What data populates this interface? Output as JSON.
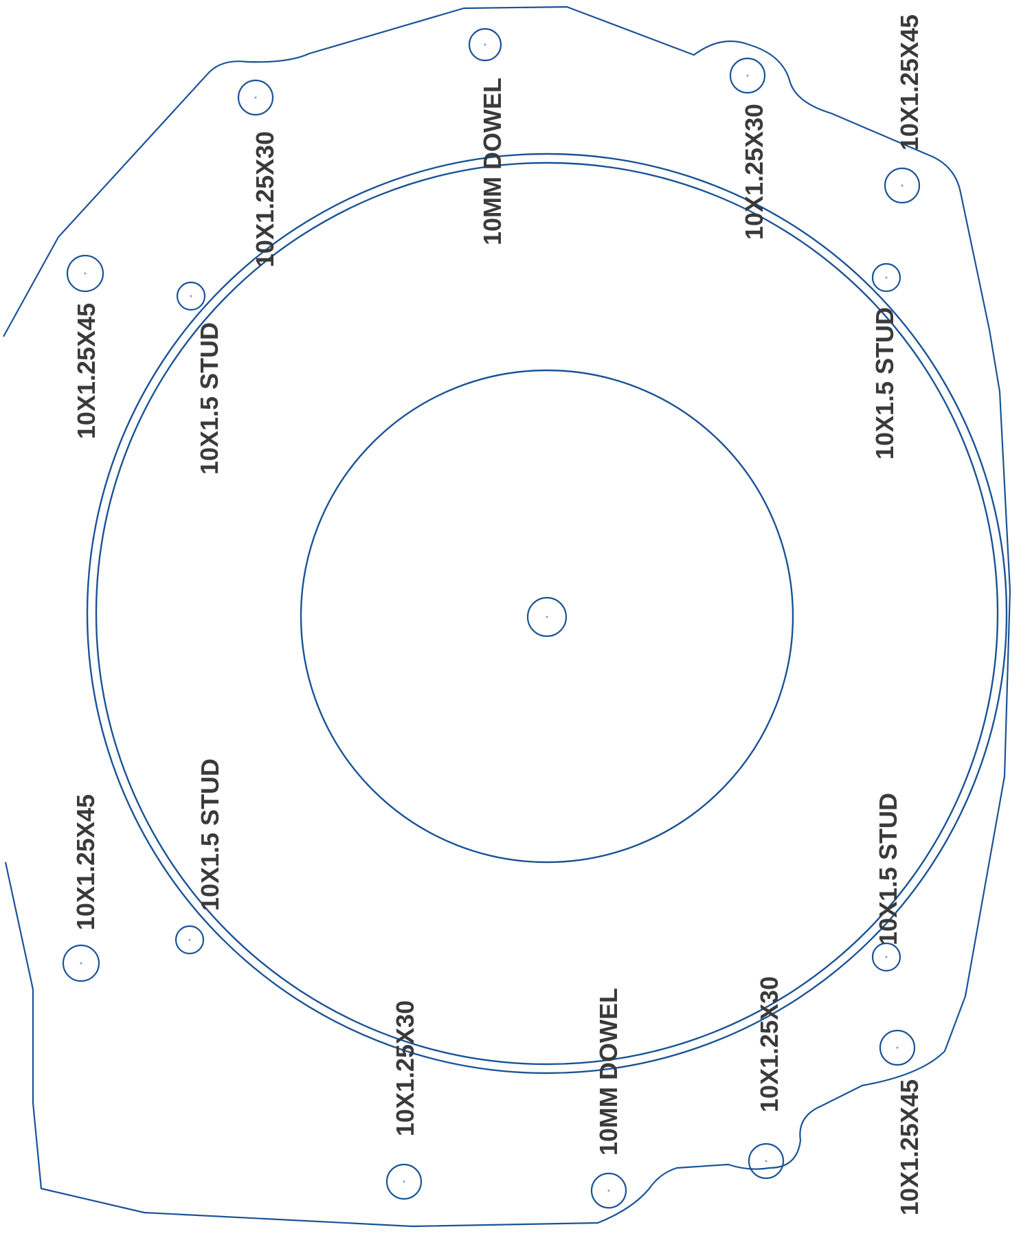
{
  "colors": {
    "line": "#1a5296",
    "text": "#3a3a3a",
    "background": "#ffffff"
  },
  "labels": {
    "l1": "10X1.25X45",
    "l2": "10X1.5 STUD",
    "l3": "10X1.25X30",
    "l4": "10MM DOWEL",
    "l5": "10X1.25X30",
    "l6": "10X1.25X45",
    "l7": "10X1.5 STUD",
    "l8": "10X1.25X45",
    "l9": "10X1.5 STUD",
    "l10": "10X1.25X30",
    "l11": "10MM DOWEL",
    "l12": "10X1.25X30",
    "l13": "10X1.5 STUD",
    "l14": "10X1.25X45"
  }
}
